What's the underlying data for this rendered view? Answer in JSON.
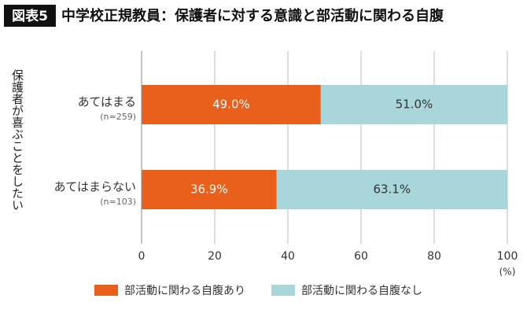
{
  "chart_data": {
    "type": "stacked-barh",
    "badge": "図表5",
    "title": "中学校正規教員：保護者に対する意識と部活動に関わる自腹",
    "y_label": "保護者が喜ぶことをしたい",
    "x_unit": "(%)",
    "categories": [
      "あてはまる",
      "あてはまらない"
    ],
    "category_notes": [
      "(n=259)",
      "(n=103)"
    ],
    "series": [
      {
        "name": "部活動に関わる自腹あり",
        "color": "#e8601c",
        "label_color": "#ffffff",
        "values": [
          49.0,
          36.9
        ],
        "value_labels": [
          "49.0%",
          "36.9%"
        ]
      },
      {
        "name": "部活動に関わる自腹なし",
        "color": "#a8d6da",
        "label_color": "#333333",
        "values": [
          51.0,
          63.1
        ],
        "value_labels": [
          "51.0%",
          "63.1%"
        ]
      }
    ],
    "xlim": [
      0,
      100
    ],
    "xticks": [
      0,
      20,
      40,
      60,
      80,
      100
    ],
    "grid": true
  }
}
